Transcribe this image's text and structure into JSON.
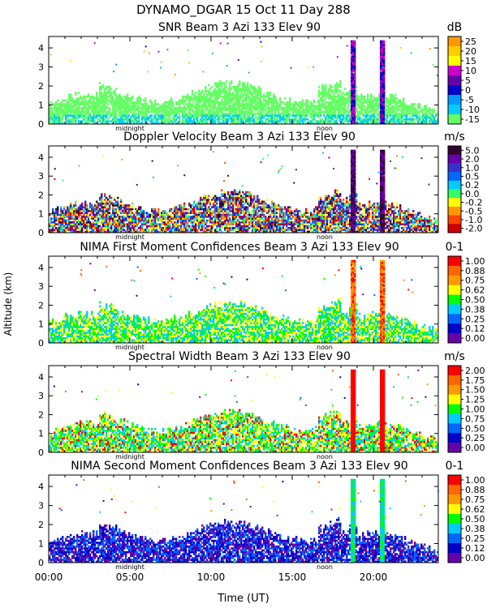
{
  "header": {
    "line1": "DYNAMO_DGAR  15 Oct 11 Day 288"
  },
  "y_axis_label": "Altitude (km)",
  "x_axis": {
    "label": "Time (UT)",
    "ticks": [
      "00:00",
      "05:00",
      "10:00",
      "15:00",
      "20:00"
    ],
    "midnight_label": "midnight",
    "noon_label": "noon"
  },
  "chart_data": [
    {
      "type": "heatmap",
      "title": "SNR Beam 3 Azi 133 Elev 90",
      "unit": "dB",
      "ylim": [
        0,
        4.6
      ],
      "yticks": [
        "0",
        "1",
        "2",
        "3",
        "4"
      ],
      "colorbar_labels": [
        "25",
        "20",
        "15",
        "10",
        "5",
        "0",
        "-5",
        "-10",
        "-15"
      ],
      "colors": [
        "#ff9900",
        "#ffcc00",
        "#ffff00",
        "#cc00cc",
        "#6600aa",
        "#0000cc",
        "#0099ff",
        "#00ccff",
        "#66ff66"
      ],
      "field": "snr"
    },
    {
      "type": "heatmap",
      "title": "Doppler Velocity Beam 3 Azi 133 Elev 90",
      "unit": "m/s",
      "ylim": [
        0,
        4.6
      ],
      "yticks": [
        "0",
        "1",
        "2",
        "3",
        "4"
      ],
      "colorbar_labels": [
        "5.0",
        "2.0",
        "1.0",
        "0.5",
        "0.2",
        "0.0",
        "-0.2",
        "-0.5",
        "-1.0",
        "-2.0"
      ],
      "colors": [
        "#330033",
        "#6600aa",
        "#3333cc",
        "#0066ff",
        "#00ccff",
        "#33ff66",
        "#ffff00",
        "#ff9900",
        "#ff4400",
        "#cc0000"
      ],
      "field": "doppler"
    },
    {
      "type": "heatmap",
      "title": "NIMA First Moment Confidences Beam 3 Azi 133 Elev 90",
      "unit": "0-1",
      "ylim": [
        0,
        4.6
      ],
      "yticks": [
        "0",
        "1",
        "2",
        "3",
        "4"
      ],
      "colorbar_labels": [
        "1.00",
        "0.88",
        "0.75",
        "0.62",
        "0.50",
        "0.38",
        "0.25",
        "0.12",
        "0.00"
      ],
      "colors": [
        "#ff0000",
        "#ff6600",
        "#ff9900",
        "#ffff00",
        "#00ff00",
        "#00ccff",
        "#0066ff",
        "#0000cc",
        "#6600aa"
      ],
      "field": "conf1"
    },
    {
      "type": "heatmap",
      "title": "Spectral Width Beam 3 Azi 133 Elev 90",
      "unit": "m/s",
      "ylim": [
        0,
        4.6
      ],
      "yticks": [
        "0",
        "1",
        "2",
        "3",
        "4"
      ],
      "colorbar_labels": [
        "2.00",
        "1.75",
        "1.50",
        "1.25",
        "1.00",
        "0.75",
        "0.50",
        "0.25",
        "0.00"
      ],
      "colors": [
        "#ff0000",
        "#ff6600",
        "#ff9900",
        "#ffff00",
        "#00ff00",
        "#00ccff",
        "#0066ff",
        "#0000cc",
        "#6600aa"
      ],
      "field": "width"
    },
    {
      "type": "heatmap",
      "title": "NIMA Second Moment Confidences Beam 3 Azi 133 Elev 90",
      "unit": "0-1",
      "ylim": [
        0,
        4.6
      ],
      "yticks": [
        "0",
        "1",
        "2",
        "3",
        "4"
      ],
      "colorbar_labels": [
        "1.00",
        "0.88",
        "0.75",
        "0.62",
        "0.50",
        "0.38",
        "0.25",
        "0.12",
        "0.00"
      ],
      "colors": [
        "#ff0000",
        "#ff6600",
        "#ff9900",
        "#ffff00",
        "#00ff00",
        "#00ccff",
        "#0066ff",
        "#0000cc",
        "#6600aa"
      ],
      "field": "conf2"
    }
  ]
}
